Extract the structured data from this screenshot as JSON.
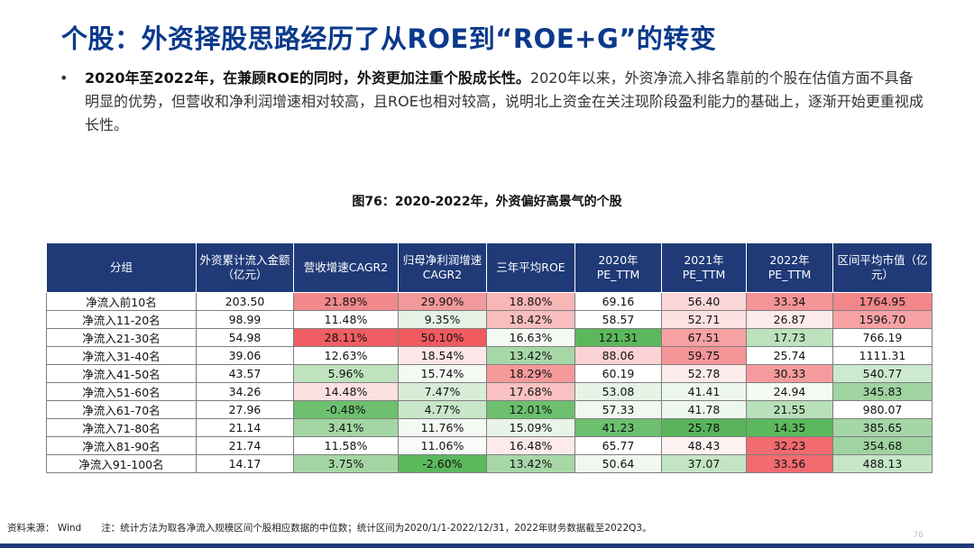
{
  "title": "个股：外资择股思路经历了从ROE到“ROE+G”的转变",
  "bullet": {
    "marker": "•",
    "bold": "2020年至2022年，在兼顾ROE的同时，外资更加注重个股成长性。",
    "text": "2020年以来，外资净流入排名靠前的个股在估值方面不具备明显的优势，但营收和净利润增速相对较高，且ROE也相对较高，说明北上资金在关注现阶段盈利能力的基础上，逐渐开始更重视成长性。"
  },
  "figure_title": "图76：2020-2022年，外资偏好高景气的个股",
  "table": {
    "headers": [
      "分组",
      "外资累计流入金额（亿元）",
      "营收增速CAGR2",
      "归母净利润增速CAGR2",
      "三年平均ROE",
      "2020年PE_TTM",
      "2021年PE_TTM",
      "2022年PE_TTM",
      "区间平均市值（亿元）"
    ],
    "rows": [
      [
        "净流入前10名",
        "203.50",
        "21.89%",
        "29.90%",
        "18.80%",
        "69.16",
        "56.40",
        "33.34",
        "1764.95"
      ],
      [
        "净流入11-20名",
        "98.99",
        "11.48%",
        "9.35%",
        "18.42%",
        "58.57",
        "52.71",
        "26.87",
        "1596.70"
      ],
      [
        "净流入21-30名",
        "54.98",
        "28.11%",
        "50.10%",
        "16.63%",
        "121.31",
        "67.51",
        "17.73",
        "766.19"
      ],
      [
        "净流入31-40名",
        "39.06",
        "12.63%",
        "18.54%",
        "13.42%",
        "88.06",
        "59.75",
        "25.74",
        "1111.31"
      ],
      [
        "净流入41-50名",
        "43.57",
        "5.96%",
        "15.74%",
        "18.29%",
        "60.19",
        "52.78",
        "30.33",
        "540.77"
      ],
      [
        "净流入51-60名",
        "34.26",
        "14.48%",
        "7.47%",
        "17.68%",
        "53.08",
        "41.41",
        "24.94",
        "345.83"
      ],
      [
        "净流入61-70名",
        "27.96",
        "-0.48%",
        "4.77%",
        "12.01%",
        "57.33",
        "41.78",
        "21.55",
        "980.07"
      ],
      [
        "净流入71-80名",
        "21.14",
        "3.41%",
        "11.76%",
        "15.09%",
        "41.23",
        "25.78",
        "14.35",
        "385.65"
      ],
      [
        "净流入81-90名",
        "21.74",
        "11.58%",
        "11.06%",
        "16.48%",
        "65.77",
        "48.43",
        "32.23",
        "354.68"
      ],
      [
        "净流入91-100名",
        "14.17",
        "3.75%",
        "-2.60%",
        "13.42%",
        "50.64",
        "37.07",
        "33.56",
        "488.13"
      ]
    ],
    "cell_colors": [
      [
        "#ffffff",
        "#ffffff",
        "#f2898c",
        "#f2999b",
        "#f8b6b7",
        "#ffffff",
        "#fbd7d8",
        "#f59597",
        "#f3878a"
      ],
      [
        "#ffffff",
        "#ffffff",
        "#ffffff",
        "#e6f2e6",
        "#f9bdbe",
        "#ffffff",
        "#fde2e2",
        "#fdebec",
        "#f7a3a5"
      ],
      [
        "#ffffff",
        "#ffffff",
        "#f05e63",
        "#f15a5f",
        "#f5f9f4",
        "#5cb85c",
        "#f7a1a3",
        "#bde2bd",
        "#ffffff"
      ],
      [
        "#ffffff",
        "#ffffff",
        "#ffffff",
        "#fde7e8",
        "#a7d7a7",
        "#fbd3d4",
        "#f59597",
        "#ffffff",
        "#ffffff"
      ],
      [
        "#ffffff",
        "#ffffff",
        "#bfe3bf",
        "#f5f9f4",
        "#f6999b",
        "#ffffff",
        "#fdeaea",
        "#f69b9d",
        "#ccead0"
      ],
      [
        "#ffffff",
        "#ffffff",
        "#fde1e2",
        "#d8edd8",
        "#f9c1c2",
        "#e6f3e6",
        "#eef7ee",
        "#f5f9f4",
        "#9fd3a0"
      ],
      [
        "#ffffff",
        "#ffffff",
        "#6cc06e",
        "#c8e7c9",
        "#6cc06e",
        "#f2f8f1",
        "#eef7ee",
        "#b8e0b9",
        "#ffffff"
      ],
      [
        "#ffffff",
        "#ffffff",
        "#a4d6a4",
        "#f5f9f4",
        "#e8f4e8",
        "#6cc06e",
        "#59b45b",
        "#5cb85c",
        "#a5d6a6"
      ],
      [
        "#ffffff",
        "#ffffff",
        "#ffffff",
        "#f8fbf7",
        "#fdeaea",
        "#ffffff",
        "#fdf1f1",
        "#f16b6f",
        "#9fd3a0"
      ],
      [
        "#ffffff",
        "#ffffff",
        "#a4d6a4",
        "#5cb85c",
        "#a7d7a7",
        "#f2f8f1",
        "#c4e5c4",
        "#f16b6f",
        "#c6e6c7"
      ]
    ]
  },
  "footer": {
    "source": "资料来源：  Wind",
    "note": "注：统计方法为取各净流入规模区间个股相应数据的中位数；统计区间为2020/1/1-2022/12/31，2022年财务数据截至2022Q3。"
  },
  "page_number": "76",
  "colors": {
    "title": "#0b3a8c",
    "header_bg": "#1f3a77",
    "bottom_bar": "#1f3a77"
  }
}
